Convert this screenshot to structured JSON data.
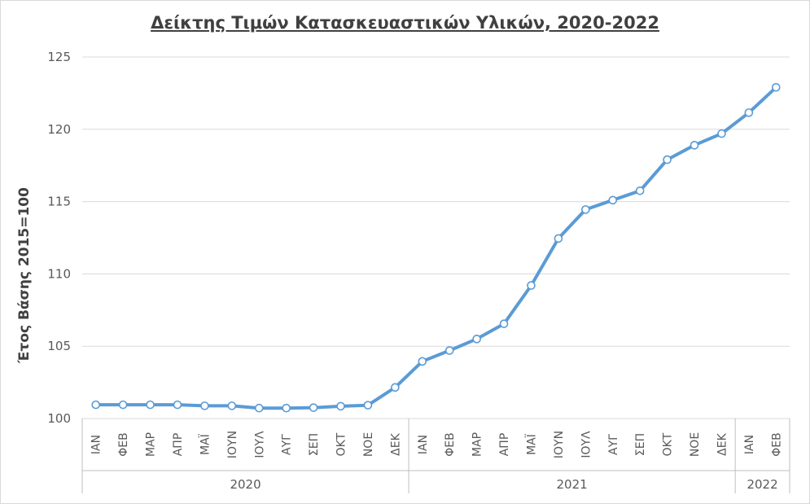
{
  "chart_data": {
    "type": "line",
    "title": "Δείκτης Τιμών Κατασκευαστικών Υλικών, 2020-2022",
    "xlabel": "",
    "ylabel": "Έτος Βάσης 2015=100",
    "ylim": [
      100,
      125
    ],
    "yticks": [
      100,
      105,
      110,
      115,
      120,
      125
    ],
    "grid": true,
    "legend": "none",
    "color": "#5b9bd5",
    "categories": [
      "ΙΑΝ",
      "ΦΕΒ",
      "ΜΑΡ",
      "ΑΠΡ",
      "ΜΑΪ",
      "ΙΟΥΝ",
      "ΙΟΥΛ",
      "ΑΥΓ",
      "ΣΕΠ",
      "ΟΚΤ",
      "ΝΟΕ",
      "ΔΕΚ",
      "ΙΑΝ",
      "ΦΕΒ",
      "ΜΑΡ",
      "ΑΠΡ",
      "ΜΑΪ",
      "ΙΟΥΝ",
      "ΙΟΥΛ",
      "ΑΥΓ",
      "ΣΕΠ",
      "ΟΚΤ",
      "ΝΟΕ",
      "ΔΕΚ",
      "ΙΑΝ",
      "ΦΕΒ"
    ],
    "groups": [
      {
        "label": "2020",
        "count": 12
      },
      {
        "label": "2021",
        "count": 12
      },
      {
        "label": "2022",
        "count": 2
      }
    ],
    "values": [
      100.95,
      100.95,
      100.95,
      100.95,
      100.88,
      100.88,
      100.72,
      100.72,
      100.75,
      100.85,
      100.92,
      102.15,
      103.95,
      104.7,
      105.5,
      106.55,
      109.2,
      112.45,
      114.45,
      115.1,
      115.75,
      117.9,
      118.9,
      119.7,
      121.15,
      122.9
    ]
  }
}
